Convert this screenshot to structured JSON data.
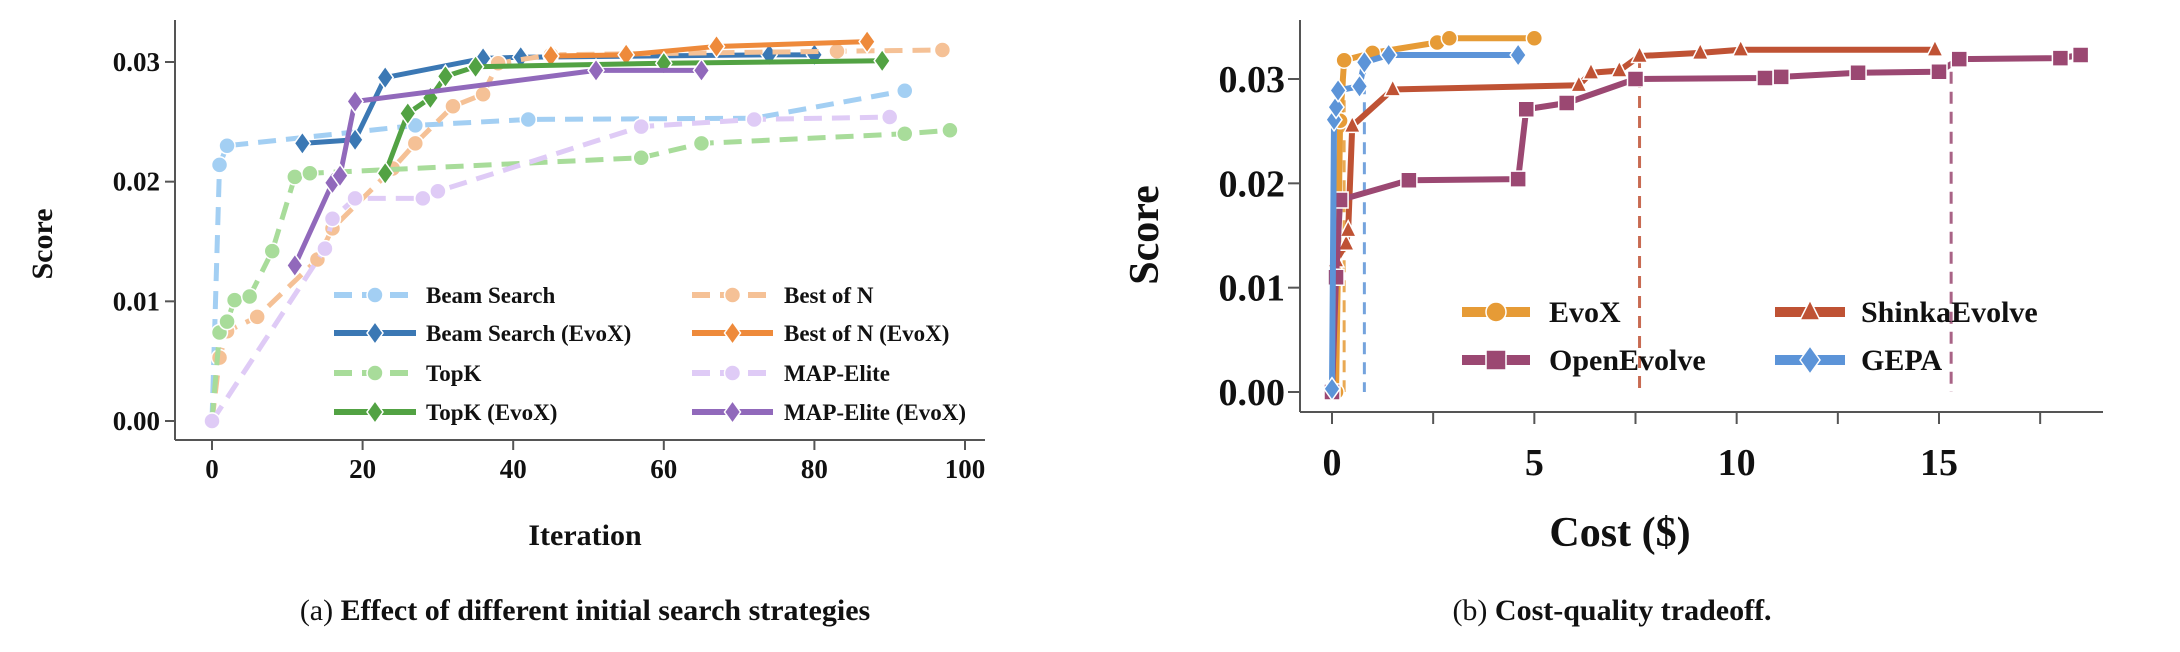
{
  "chart_data": [
    {
      "type": "line",
      "caption_prefix": "(a)",
      "caption": "Effect of different initial search strategies",
      "xlabel": "Iteration",
      "ylabel": "Score",
      "xlim": [
        -5,
        103
      ],
      "ylim": [
        -0.0005,
        0.0345
      ],
      "xticks": [
        0,
        20,
        40,
        60,
        80,
        100
      ],
      "yticks": [
        0.0,
        0.01,
        0.02,
        0.03
      ],
      "ytick_labels": [
        "0.00",
        "0.01",
        "0.02",
        "0.03"
      ],
      "grid": false,
      "legend_placement": "lower-right",
      "series": [
        {
          "name": "Beam Search",
          "color": "#a3cff3",
          "dashed": true,
          "marker": "circle",
          "x": [
            0,
            1,
            2,
            27,
            42,
            72,
            92
          ],
          "y": [
            0.0,
            0.0214,
            0.023,
            0.0247,
            0.0252,
            0.0253,
            0.0276
          ]
        },
        {
          "name": "Beam Search (EvoX)",
          "color": "#3b78b4",
          "dashed": false,
          "marker": "diamond",
          "x": [
            12,
            19,
            23,
            36,
            41,
            74,
            80
          ],
          "y": [
            0.0232,
            0.0235,
            0.0287,
            0.0303,
            0.0304,
            0.0306,
            0.0306
          ]
        },
        {
          "name": "Best of N",
          "color": "#f5c196",
          "dashed": true,
          "marker": "circle",
          "x": [
            0,
            1,
            2,
            6,
            14,
            16,
            24,
            27,
            32,
            36,
            38,
            45,
            83,
            97
          ],
          "y": [
            0.0,
            0.0053,
            0.0075,
            0.0087,
            0.0135,
            0.0161,
            0.0211,
            0.0232,
            0.0263,
            0.0273,
            0.0299,
            0.0306,
            0.0309,
            0.031
          ]
        },
        {
          "name": "Best of N (EvoX)",
          "color": "#ee8a3b",
          "dashed": false,
          "marker": "diamond",
          "x": [
            45,
            55,
            67,
            87
          ],
          "y": [
            0.0305,
            0.0306,
            0.0313,
            0.0317
          ]
        },
        {
          "name": "TopK",
          "color": "#a8dc9a",
          "dashed": true,
          "marker": "circle",
          "x": [
            0,
            1,
            2,
            3,
            5,
            8,
            11,
            13,
            57,
            65,
            92,
            98
          ],
          "y": [
            0.0,
            0.0074,
            0.0083,
            0.0101,
            0.0104,
            0.0142,
            0.0204,
            0.0207,
            0.022,
            0.0232,
            0.024,
            0.0243
          ]
        },
        {
          "name": "TopK (EvoX)",
          "color": "#52a243",
          "dashed": false,
          "marker": "diamond",
          "x": [
            23,
            26,
            29,
            31,
            35,
            60,
            89
          ],
          "y": [
            0.0207,
            0.0257,
            0.027,
            0.0288,
            0.0296,
            0.0299,
            0.0301
          ]
        },
        {
          "name": "MAP-Elite",
          "color": "#dfcbf6",
          "dashed": true,
          "marker": "circle",
          "x": [
            0,
            15,
            16,
            19,
            28,
            30,
            57,
            72,
            90
          ],
          "y": [
            0.0,
            0.0144,
            0.0169,
            0.0186,
            0.0186,
            0.0192,
            0.0246,
            0.0252,
            0.0254
          ]
        },
        {
          "name": "MAP-Elite (EvoX)",
          "color": "#9169bb",
          "dashed": false,
          "marker": "diamond",
          "x": [
            11,
            16,
            17,
            19,
            51,
            65
          ],
          "y": [
            0.013,
            0.0199,
            0.0205,
            0.0267,
            0.0293,
            0.0293
          ]
        }
      ]
    },
    {
      "type": "line",
      "caption_prefix": "(b)",
      "caption": "Cost-quality tradeoff.",
      "xlabel": "Cost ($)",
      "ylabel": "Score",
      "xlim": [
        -0.5,
        19.3
      ],
      "ylim": [
        -0.002,
        0.0355
      ],
      "xticks": [
        0,
        5,
        10,
        15
      ],
      "yticks": [
        0.0,
        0.01,
        0.02,
        0.03
      ],
      "ytick_labels": [
        "0.00",
        "0.01",
        "0.02",
        "0.03"
      ],
      "grid": false,
      "legend_placement": "lower-right",
      "series": [
        {
          "name": "EvoX",
          "color": "#e69b36",
          "marker": "circle",
          "cutoff_x": 0.3,
          "x": [
            0.1,
            0.2,
            0.3,
            1.0,
            2.6,
            2.9,
            5.0
          ],
          "y": [
            0.0,
            0.026,
            0.0318,
            0.0325,
            0.0335,
            0.0339,
            0.0339
          ]
        },
        {
          "name": "ShinkaEvolve",
          "color": "#bf5234",
          "marker": "triangle",
          "cutoff_x": 7.6,
          "x": [
            0.0,
            0.1,
            0.35,
            0.4,
            0.5,
            1.5,
            6.1,
            6.4,
            7.1,
            7.6,
            9.1,
            10.1,
            14.9
          ],
          "y": [
            0.0,
            0.0126,
            0.0142,
            0.0155,
            0.0255,
            0.029,
            0.0294,
            0.0306,
            0.0308,
            0.0322,
            0.0325,
            0.0328,
            0.0328
          ]
        },
        {
          "name": "OpenEvolve",
          "color": "#9b4872",
          "marker": "square",
          "cutoff_x": 15.3,
          "x": [
            0.0,
            0.1,
            0.2,
            1.9,
            4.6,
            4.8,
            5.8,
            7.5,
            10.7,
            11.1,
            13.0,
            15.0,
            15.5,
            18.0,
            18.5
          ],
          "y": [
            0.0,
            0.011,
            0.0184,
            0.0203,
            0.0204,
            0.0271,
            0.0277,
            0.03,
            0.0301,
            0.0302,
            0.0306,
            0.0307,
            0.0319,
            0.032,
            0.0323
          ]
        },
        {
          "name": "GEPA",
          "color": "#5c94d8",
          "marker": "diamond",
          "cutoff_x": 0.8,
          "x": [
            0.0,
            0.05,
            0.1,
            0.15,
            0.68,
            0.8,
            1.4,
            4.6
          ],
          "y": [
            0.0003,
            0.0261,
            0.0273,
            0.0289,
            0.0293,
            0.0316,
            0.0323,
            0.0323
          ]
        }
      ]
    }
  ]
}
